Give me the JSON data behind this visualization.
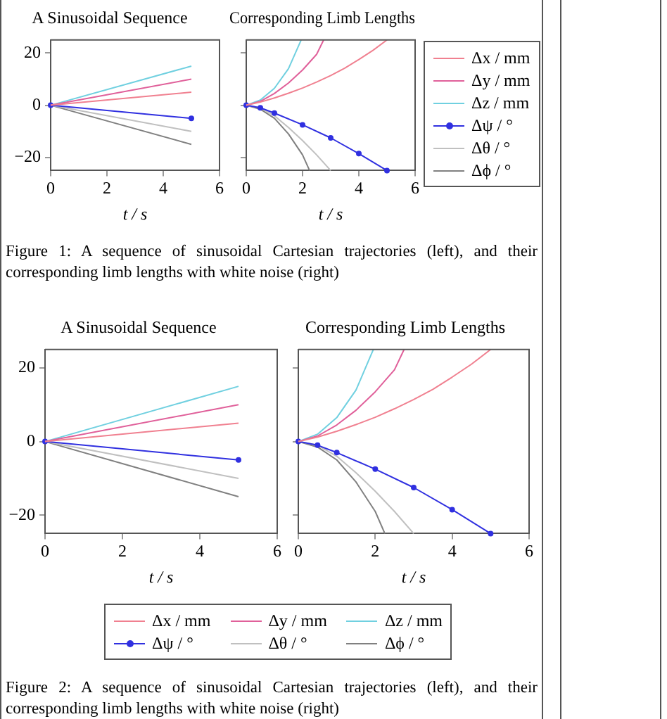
{
  "chart_data": [
    {
      "type": "line",
      "title": "A Sinusoidal Sequence",
      "xlabel": "t / s",
      "xlim": [
        0,
        6
      ],
      "xticks": [
        0,
        2,
        4,
        6
      ],
      "ylim": [
        -25,
        25
      ],
      "yticks": [
        -20,
        0,
        20
      ],
      "grid": false,
      "legend": false,
      "series": [
        {
          "color": "#f08090",
          "x": [
            0,
            5
          ],
          "values": [
            0,
            5
          ],
          "marker": "none"
        },
        {
          "color": "#e0609a",
          "x": [
            0,
            5
          ],
          "values": [
            0,
            10
          ],
          "marker": "none"
        },
        {
          "color": "#70d0e0",
          "x": [
            0,
            5
          ],
          "values": [
            0,
            15
          ],
          "marker": "none"
        },
        {
          "color": "#3030e0",
          "x": [
            0,
            5
          ],
          "values": [
            0,
            -5
          ],
          "marker": "circle"
        },
        {
          "color": "#c0c0c0",
          "x": [
            0,
            5
          ],
          "values": [
            0,
            -10
          ],
          "marker": "none"
        },
        {
          "color": "#808080",
          "x": [
            0,
            5
          ],
          "values": [
            0,
            -15
          ],
          "marker": "none"
        }
      ]
    },
    {
      "type": "line",
      "title": "Corresponding Limb Lengths",
      "xlabel": "t / s",
      "xlim": [
        0,
        6
      ],
      "xticks": [
        0,
        2,
        4,
        6
      ],
      "ylim": [
        -25,
        25
      ],
      "yticks": [
        -20,
        0,
        20
      ],
      "tick_labels": "x",
      "grid": false,
      "legend": "right",
      "annotations": [
        "Figure 1: A sequence of sinusoidal Cartesian trajectories (left), and their corresponding limb lengths with white noise (right)"
      ],
      "series": [
        {
          "name": "Δx / mm",
          "color": "#f08090",
          "x": [
            0,
            0.5,
            1,
            1.5,
            2,
            2.5,
            3,
            3.5,
            4,
            4.5,
            5
          ],
          "values": [
            0,
            1.2,
            2.8,
            4.6,
            6.6,
            8.9,
            11.4,
            14.2,
            17.5,
            21,
            25
          ],
          "marker": "none"
        },
        {
          "name": "Δy / mm",
          "color": "#e0609a",
          "x": [
            0,
            0.5,
            1,
            1.5,
            2,
            2.5,
            2.75
          ],
          "values": [
            0,
            1.5,
            4.5,
            8.5,
            13.5,
            19.5,
            25
          ],
          "marker": "none"
        },
        {
          "name": "Δz / mm",
          "color": "#70d0e0",
          "x": [
            0,
            0.5,
            1,
            1.5,
            1.95
          ],
          "values": [
            0,
            2,
            6.5,
            14,
            25
          ],
          "marker": "none"
        },
        {
          "name": "Δψ / °",
          "color": "#3030e0",
          "x": [
            0,
            0.5,
            1,
            2,
            3,
            4,
            5
          ],
          "values": [
            0,
            -1,
            -3,
            -7.5,
            -12.5,
            -18.5,
            -25
          ],
          "marker": "circle"
        },
        {
          "name": "Δθ / °",
          "color": "#c0c0c0",
          "x": [
            0,
            0.5,
            1,
            1.5,
            2,
            2.5,
            3
          ],
          "values": [
            0,
            -1,
            -4,
            -8.5,
            -13.5,
            -19,
            -25
          ],
          "marker": "none"
        },
        {
          "name": "Δϕ / °",
          "color": "#808080",
          "x": [
            0,
            0.5,
            1,
            1.5,
            2,
            2.25
          ],
          "values": [
            0,
            -1.5,
            -5,
            -11,
            -19,
            -25
          ],
          "marker": "none"
        }
      ]
    },
    {
      "type": "line",
      "title": "A Sinusoidal Sequence",
      "xlabel": "t / s",
      "xlim": [
        0,
        6
      ],
      "xticks": [
        0,
        2,
        4,
        6
      ],
      "ylim": [
        -25,
        25
      ],
      "yticks": [
        -20,
        0,
        20
      ],
      "grid": false,
      "legend": false,
      "series": [
        {
          "color": "#f08090",
          "x": [
            0,
            5
          ],
          "values": [
            0,
            5
          ],
          "marker": "none"
        },
        {
          "color": "#e0609a",
          "x": [
            0,
            5
          ],
          "values": [
            0,
            10
          ],
          "marker": "none"
        },
        {
          "color": "#70d0e0",
          "x": [
            0,
            5
          ],
          "values": [
            0,
            15
          ],
          "marker": "none"
        },
        {
          "color": "#3030e0",
          "x": [
            0,
            5
          ],
          "values": [
            0,
            -5
          ],
          "marker": "circle"
        },
        {
          "color": "#c0c0c0",
          "x": [
            0,
            5
          ],
          "values": [
            0,
            -10
          ],
          "marker": "none"
        },
        {
          "color": "#808080",
          "x": [
            0,
            5
          ],
          "values": [
            0,
            -15
          ],
          "marker": "none"
        }
      ]
    },
    {
      "type": "line",
      "title": "Corresponding Limb Lengths",
      "xlabel": "t / s",
      "xlim": [
        0,
        6
      ],
      "xticks": [
        0,
        2,
        4,
        6
      ],
      "ylim": [
        -25,
        25
      ],
      "yticks": [
        -20,
        0,
        20
      ],
      "tick_labels": "x",
      "grid": false,
      "legend": "bottom",
      "annotations": [
        "Figure 2: A sequence of sinusoidal Cartesian trajectories (left), and their corresponding limb lengths with white noise (right)"
      ],
      "series": [
        {
          "name": "Δx / mm",
          "color": "#f08090",
          "x": [
            0,
            0.5,
            1,
            1.5,
            2,
            2.5,
            3,
            3.5,
            4,
            4.5,
            5
          ],
          "values": [
            0,
            1.2,
            2.8,
            4.6,
            6.6,
            8.9,
            11.4,
            14.2,
            17.5,
            21,
            25
          ],
          "marker": "none"
        },
        {
          "name": "Δy / mm",
          "color": "#e0609a",
          "x": [
            0,
            0.5,
            1,
            1.5,
            2,
            2.5,
            2.75
          ],
          "values": [
            0,
            1.5,
            4.5,
            8.5,
            13.5,
            19.5,
            25
          ],
          "marker": "none"
        },
        {
          "name": "Δz / mm",
          "color": "#70d0e0",
          "x": [
            0,
            0.5,
            1,
            1.5,
            1.95
          ],
          "values": [
            0,
            2,
            6.5,
            14,
            25
          ],
          "marker": "none"
        },
        {
          "name": "Δψ / °",
          "color": "#3030e0",
          "x": [
            0,
            0.5,
            1,
            2,
            3,
            4,
            5
          ],
          "values": [
            0,
            -1,
            -3,
            -7.5,
            -12.5,
            -18.5,
            -25
          ],
          "marker": "circle"
        },
        {
          "name": "Δθ / °",
          "color": "#c0c0c0",
          "x": [
            0,
            0.5,
            1,
            1.5,
            2,
            2.5,
            3
          ],
          "values": [
            0,
            -1,
            -4,
            -8.5,
            -13.5,
            -19,
            -25
          ],
          "marker": "none"
        },
        {
          "name": "Δϕ / °",
          "color": "#808080",
          "x": [
            0,
            0.5,
            1,
            1.5,
            2,
            2.25
          ],
          "values": [
            0,
            -1.5,
            -5,
            -11,
            -19,
            -25
          ],
          "marker": "none"
        }
      ]
    }
  ]
}
